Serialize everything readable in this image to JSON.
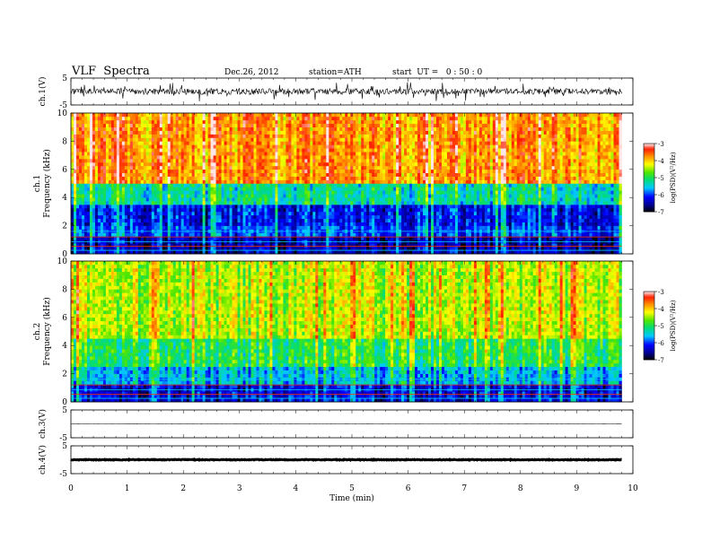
{
  "header": {
    "title": "VLF  Spectra",
    "date": "Dec.26, 2012",
    "station": "station=ATH",
    "start": "start  UT =   0 : 50 : 0"
  },
  "chart_data": [
    {
      "type": "line",
      "name": "ch1-waveform",
      "ylabel": "ch.1(V)",
      "ylim": [
        -5,
        5
      ],
      "yticks": [
        "5",
        "-5"
      ],
      "xlim": [
        0,
        10
      ],
      "data_extent_min": 9.8,
      "baseline": 0,
      "noise_amplitude": 2.2,
      "color": "#000000"
    },
    {
      "type": "heatmap",
      "name": "ch1-spectrogram",
      "ylabel": "ch.1\nFrequency  (kHz)",
      "ylim": [
        0,
        10
      ],
      "yticks": [
        "0",
        "2",
        "4",
        "6",
        "8",
        "10"
      ],
      "xlim": [
        0,
        10
      ],
      "data_extent_min": 9.8,
      "colorbar": {
        "label": "log(PSD)(V²/Hz)",
        "range": [
          -7,
          -3
        ],
        "ticks": [
          "-3",
          "-4",
          "-5",
          "-6",
          "-7"
        ]
      },
      "bands": [
        {
          "f_min": 0,
          "f_max": 1.2,
          "logpsd": -6.5
        },
        {
          "f_min": 1.2,
          "f_max": 2.0,
          "logpsd": -6.0
        },
        {
          "f_min": 2.0,
          "f_max": 3.6,
          "logpsd": -6.2
        },
        {
          "f_min": 3.6,
          "f_max": 5.0,
          "logpsd": -5.3
        },
        {
          "f_min": 5.0,
          "f_max": 10,
          "logpsd": -3.8
        }
      ]
    },
    {
      "type": "heatmap",
      "name": "ch2-spectrogram",
      "ylabel": "ch.2\nFrequency  (kHz)",
      "ylim": [
        0,
        10
      ],
      "yticks": [
        "0",
        "2",
        "4",
        "6",
        "8",
        "10"
      ],
      "xlim": [
        0,
        10
      ],
      "data_extent_min": 9.8,
      "colorbar": {
        "label": "log(PSD)(V²/Hz)",
        "range": [
          -7,
          -3
        ],
        "ticks": [
          "-3",
          "-4",
          "-5",
          "-6",
          "-7"
        ]
      },
      "bands": [
        {
          "f_min": 0,
          "f_max": 1.2,
          "logpsd": -6.3
        },
        {
          "f_min": 1.2,
          "f_max": 2.6,
          "logpsd": -5.6
        },
        {
          "f_min": 2.6,
          "f_max": 4.5,
          "logpsd": -5.0
        },
        {
          "f_min": 4.5,
          "f_max": 10,
          "logpsd": -4.4
        }
      ]
    },
    {
      "type": "line",
      "name": "ch3-waveform",
      "ylabel": "ch.3(V)",
      "ylim": [
        -5,
        5
      ],
      "yticks": [
        "5",
        "-5"
      ],
      "xlim": [
        0,
        10
      ],
      "data_extent_min": 9.8,
      "baseline": 0,
      "noise_amplitude": 0.05,
      "color": "#000000"
    },
    {
      "type": "line",
      "name": "ch4-waveform",
      "ylabel": "ch.4(V)",
      "ylim": [
        -5,
        5
      ],
      "yticks": [
        "5",
        "-5"
      ],
      "xlim": [
        0,
        10
      ],
      "data_extent_min": 9.8,
      "baseline": 0,
      "noise_amplitude": 0.25,
      "color": "#000000"
    }
  ],
  "xaxis": {
    "label": "Time  (min)",
    "ticks": [
      "0",
      "1",
      "2",
      "3",
      "4",
      "5",
      "6",
      "7",
      "8",
      "9",
      "10"
    ]
  }
}
